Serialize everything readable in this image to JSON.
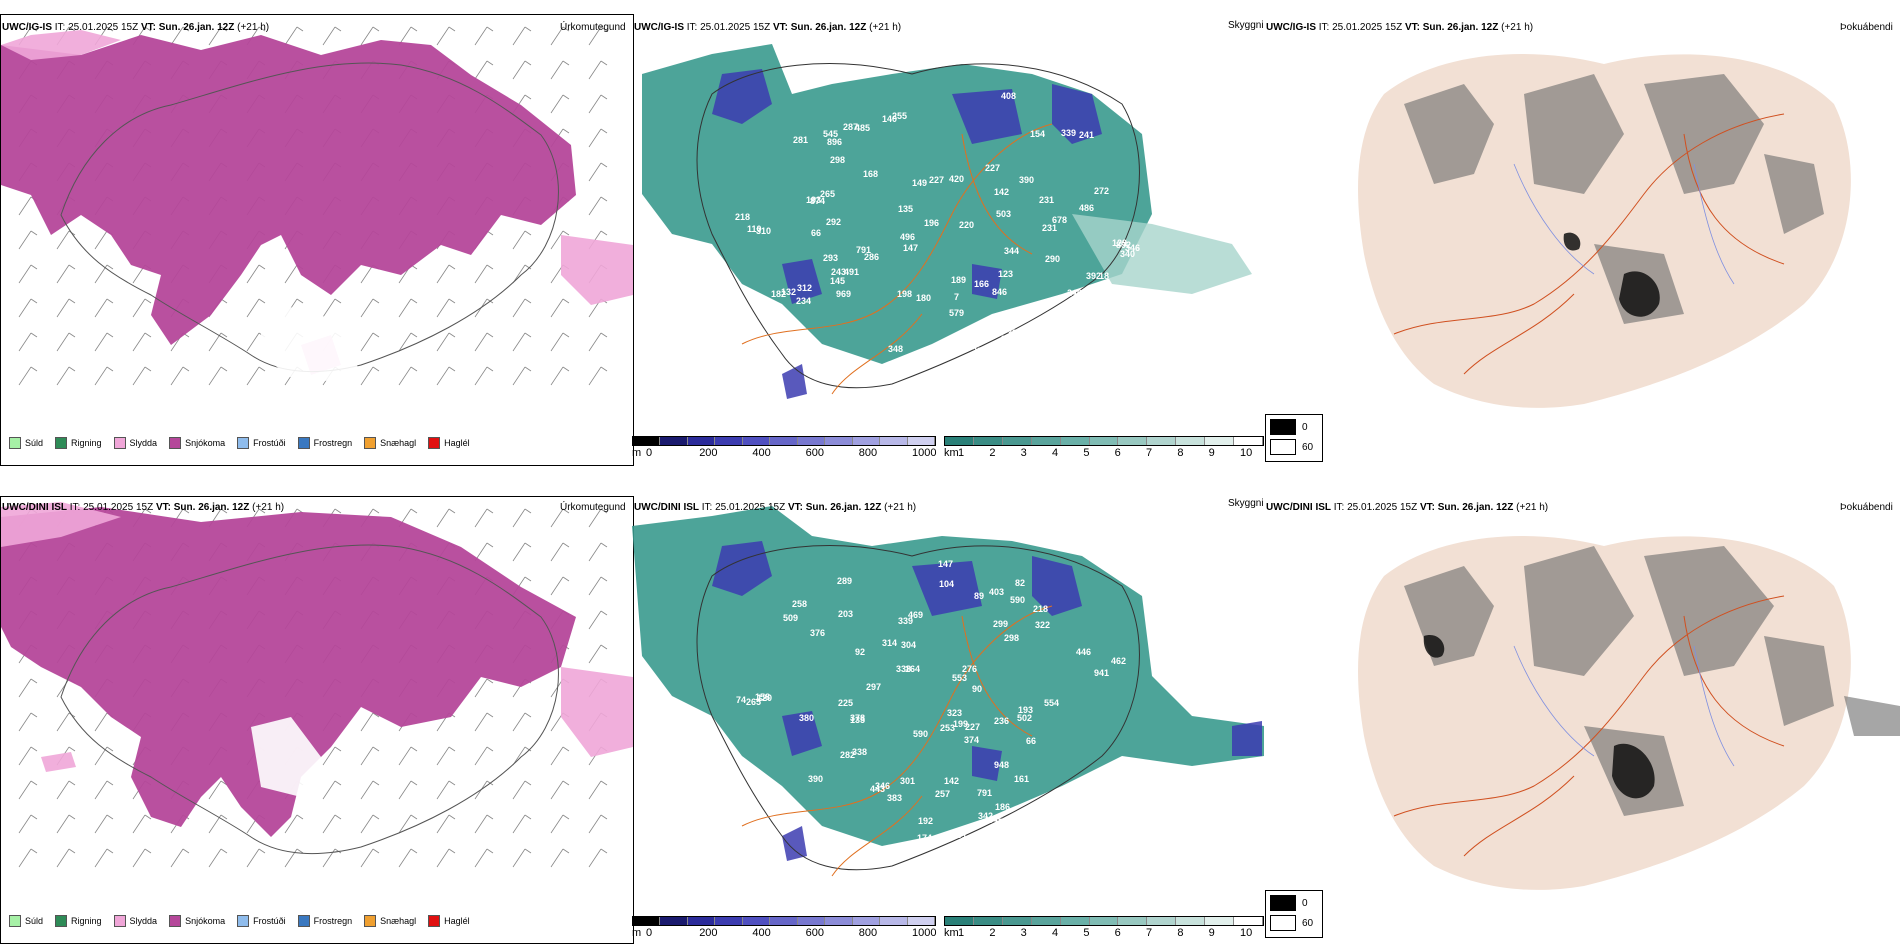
{
  "rows": [
    {
      "model": "UWC/IG-IS",
      "it_label": "IT:",
      "it_value": "25.01.2025 15Z",
      "vt_label": "VT:",
      "vt_value": "Sun. 26.jan. 12Z",
      "lead": "(+21 h)",
      "precip_name": "Úrkomutegund",
      "sky_name": "Skyggni",
      "fog_name": "Þokuábendi"
    },
    {
      "model": "UWC/DINI ISL",
      "it_label": "IT:",
      "it_value": "25.01.2025 15Z",
      "vt_label": "VT:",
      "vt_value": "Sun. 26.jan. 12Z",
      "lead": "(+21 h)",
      "precip_name": "Úrkomutegund",
      "sky_name": "Skyggni",
      "fog_name": "Þokuábendi"
    }
  ],
  "precip_legend": [
    {
      "label": "Súld",
      "color": "#a6f0a6"
    },
    {
      "label": "Rigning",
      "color": "#2e8b57"
    },
    {
      "label": "Slydda",
      "color": "#f0a6d8"
    },
    {
      "label": "Snjókoma",
      "color": "#b5479a"
    },
    {
      "label": "Frostúði",
      "color": "#8fbcec"
    },
    {
      "label": "Frostregn",
      "color": "#3a78c0"
    },
    {
      "label": "Snæhagl",
      "color": "#f0a030"
    },
    {
      "label": "Haglél",
      "color": "#e01010"
    }
  ],
  "ceiling_bar": {
    "unit": "m",
    "ticks": [
      "0",
      "200",
      "400",
      "600",
      "800",
      "1000"
    ],
    "colors": [
      "#000000",
      "#1a1a6e",
      "#2b2b9a",
      "#3c3cb0",
      "#5050c0",
      "#6666c8",
      "#7878d0",
      "#8c8cd8",
      "#a0a0e0",
      "#b8b8e8",
      "#d0d0f0"
    ]
  },
  "vis_bar": {
    "unit": "km",
    "ticks": [
      "1",
      "2",
      "3",
      "4",
      "5",
      "6",
      "7",
      "8",
      "9",
      "10"
    ],
    "colors": [
      "#2a8078",
      "#3a8c84",
      "#4a9890",
      "#5aa49c",
      "#6ab0a8",
      "#80bcb4",
      "#98c8c0",
      "#b0d4ce",
      "#c8e2dc",
      "#e2f0ec",
      "#ffffff"
    ]
  },
  "fog_legend": [
    {
      "label": "0",
      "color": "#000000"
    },
    {
      "label": "60",
      "color": "#ffffff"
    }
  ],
  "cloud_base_labels_top": [
    "241",
    "290",
    "142",
    "969",
    "168",
    "134",
    "286",
    "292",
    "240",
    "198",
    "892",
    "95",
    "791",
    "265",
    "255",
    "344",
    "496",
    "678",
    "896",
    "390",
    "145",
    "234",
    "243",
    "189",
    "149",
    "155",
    "408",
    "339",
    "140",
    "218",
    "180",
    "846",
    "545",
    "282",
    "231",
    "874",
    "340",
    "132",
    "193",
    "392",
    "227",
    "503",
    "287",
    "281",
    "334",
    "750",
    "346",
    "310",
    "420",
    "196",
    "579",
    "231",
    "166",
    "227",
    "222",
    "135",
    "147",
    "293",
    "272",
    "312",
    "348",
    "485",
    "7",
    "129",
    "220",
    "123",
    "486",
    "491",
    "110",
    "66",
    "18",
    "298",
    "154",
    "182"
  ],
  "cloud_base_labels_bottom": [
    "446",
    "147",
    "158",
    "124",
    "120",
    "301",
    "590",
    "304",
    "258",
    "299",
    "203",
    "276",
    "554",
    "339",
    "174",
    "374",
    "345",
    "701",
    "338",
    "378",
    "66",
    "89",
    "82",
    "161",
    "90",
    "92",
    "104",
    "390",
    "186",
    "257",
    "265",
    "298",
    "462",
    "509",
    "941",
    "791",
    "502",
    "553",
    "443",
    "323",
    "403",
    "314",
    "342",
    "253",
    "297",
    "376",
    "282",
    "346",
    "164",
    "289",
    "383",
    "469",
    "338",
    "590",
    "409",
    "322",
    "142",
    "227",
    "135",
    "218",
    "199",
    "380",
    "193",
    "225",
    "192",
    "236",
    "74",
    "948"
  ]
}
